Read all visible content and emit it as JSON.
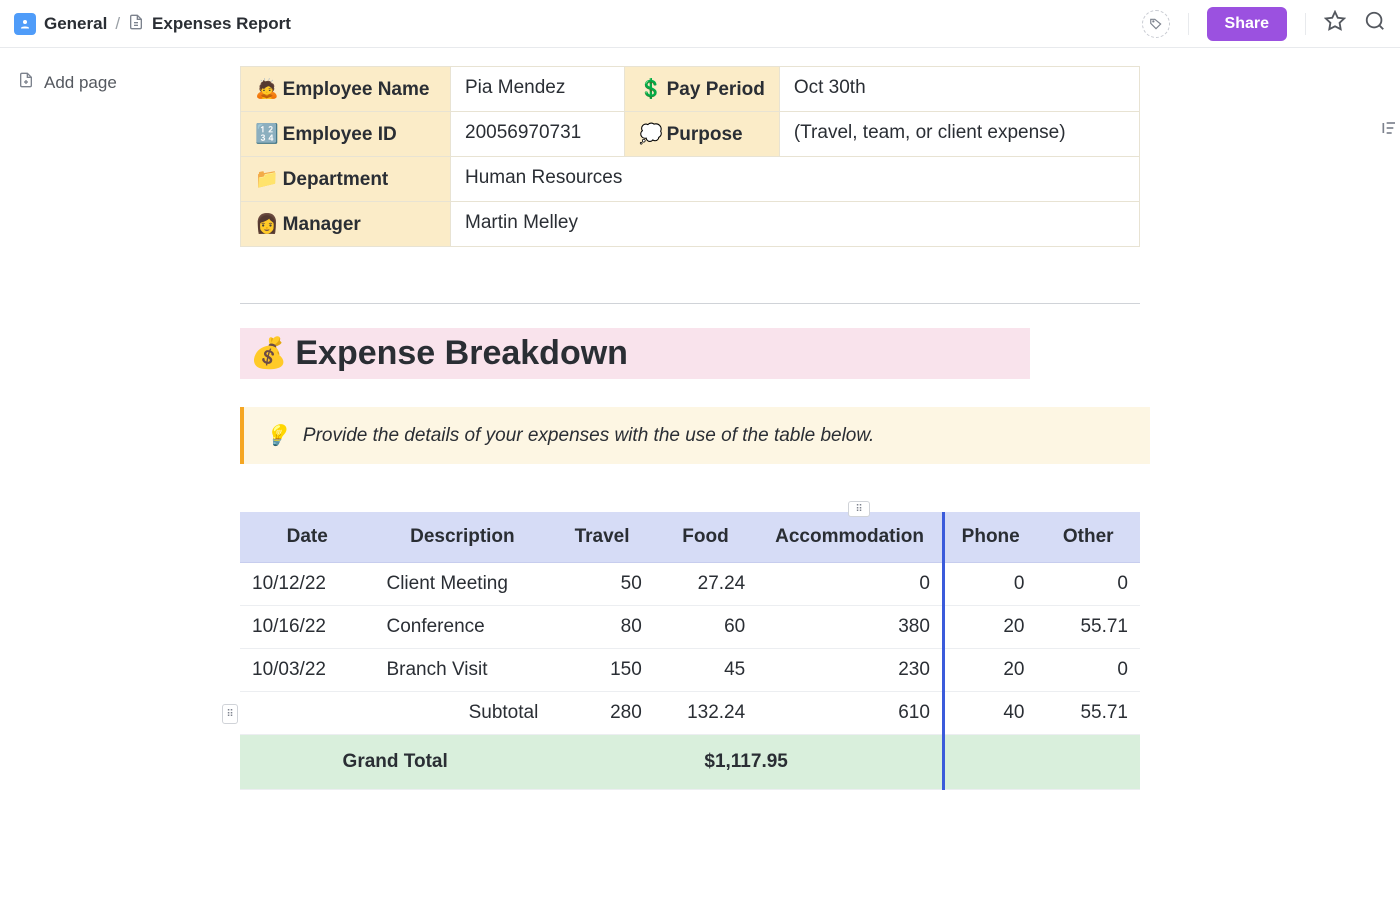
{
  "breadcrumb": {
    "root_label": "General",
    "page_label": "Expenses Report"
  },
  "topbar": {
    "share_label": "Share"
  },
  "sidebar": {
    "add_page_label": "Add page"
  },
  "info": {
    "employee_name_label": "Employee Name",
    "employee_name_value": "Pia Mendez",
    "pay_period_label": "Pay Period",
    "pay_period_value": "Oct 30th",
    "employee_id_label": "Employee ID",
    "employee_id_value": "20056970731",
    "purpose_label": "Purpose",
    "purpose_value": "(Travel, team, or client expense)",
    "department_label": "Department",
    "department_value": "Human Resources",
    "manager_label": "Manager",
    "manager_value": "Martin Melley",
    "icons": {
      "employee_name": "🙇",
      "pay_period": "💲",
      "employee_id": "🔢",
      "purpose": "💭",
      "department": "📁",
      "manager": "👩"
    }
  },
  "section": {
    "title": "Expense Breakdown",
    "emoji": "💰",
    "callout_text": "Provide the details of your expenses with the use of the table below.",
    "callout_emoji": "💡"
  },
  "expenses": {
    "columns": [
      "Date",
      "Description",
      "Travel",
      "Food",
      "Accommodation",
      "Phone",
      "Other"
    ],
    "rows": [
      {
        "date": "10/12/22",
        "desc": "Client Meeting",
        "travel": "50",
        "food": "27.24",
        "accom": "0",
        "phone": "0",
        "other": "0"
      },
      {
        "date": "10/16/22",
        "desc": "Conference",
        "travel": "80",
        "food": "60",
        "accom": "380",
        "phone": "20",
        "other": "55.71"
      },
      {
        "date": "10/03/22",
        "desc": "Branch Visit",
        "travel": "150",
        "food": "45",
        "accom": "230",
        "phone": "20",
        "other": "0"
      }
    ],
    "subtotal_label": "Subtotal",
    "subtotal": {
      "travel": "280",
      "food": "132.24",
      "accom": "610",
      "phone": "40",
      "other": "55.71"
    },
    "grand_total_label": "Grand Total",
    "grand_total_value": "$1,117.95",
    "header_bg": "#d6dcf6",
    "grand_bg": "#d9efdc",
    "divider_color": "#3b5bdb"
  }
}
